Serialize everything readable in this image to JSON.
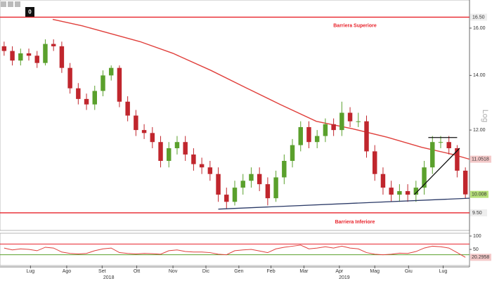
{
  "toolbar": {
    "badge": "0"
  },
  "chart_data": [
    {
      "type": "candlestick",
      "log": true,
      "log_label": "Log",
      "up_color": "#5aa02c",
      "down_color": "#c0262d",
      "x": [
        0.5,
        1.5,
        2.5,
        3.5,
        4.5,
        5.5,
        6.5,
        7.5,
        8.5,
        9.5,
        10.5,
        11.5,
        12.5,
        13.5,
        14.5,
        15.5,
        16.5,
        17.5,
        18.5,
        19.5,
        20.5,
        21.5,
        22.5,
        23.5,
        24.5,
        25.5,
        26.5,
        27.5,
        28.5,
        29.5,
        30.5,
        31.5,
        32.5,
        33.5,
        34.5,
        35.5,
        36.5,
        37.5,
        38.5,
        39.5,
        40.5,
        41.5,
        42.5,
        43.5,
        44.5,
        45.5,
        46.5,
        47.5,
        48.5,
        49.5,
        50.5,
        51.5,
        52.5,
        53.5,
        54.5,
        55.5,
        56.5
      ],
      "open": [
        15.2,
        15.0,
        14.6,
        14.9,
        14.8,
        14.5,
        15.3,
        15.2,
        14.3,
        13.5,
        13.1,
        12.9,
        13.4,
        14.0,
        14.3,
        13.0,
        12.5,
        12.0,
        11.9,
        11.6,
        11.0,
        11.4,
        11.6,
        11.2,
        10.9,
        10.8,
        10.6,
        10.0,
        9.8,
        10.2,
        10.4,
        10.6,
        10.3,
        9.9,
        10.5,
        11.0,
        11.5,
        12.1,
        11.6,
        11.8,
        12.2,
        12.0,
        12.6,
        12.3,
        12.3,
        11.3,
        10.6,
        10.2,
        10.0,
        10.1,
        10.0,
        10.2,
        10.8,
        11.6,
        11.6,
        11.4,
        10.7
      ],
      "high": [
        15.4,
        15.2,
        15.1,
        15.1,
        15.0,
        15.5,
        15.5,
        15.4,
        14.5,
        13.7,
        13.3,
        13.6,
        14.2,
        14.4,
        14.4,
        13.2,
        12.7,
        12.2,
        12.1,
        11.8,
        11.6,
        11.8,
        11.8,
        11.4,
        11.1,
        11.0,
        10.8,
        10.2,
        10.4,
        10.6,
        10.8,
        10.8,
        10.5,
        10.7,
        11.2,
        11.7,
        12.3,
        12.3,
        12.0,
        12.4,
        12.4,
        13.0,
        12.8,
        12.6,
        12.5,
        11.5,
        10.8,
        10.4,
        10.3,
        10.3,
        10.4,
        11.0,
        11.8,
        11.8,
        11.8,
        11.5,
        10.8
      ],
      "low": [
        14.8,
        14.4,
        14.4,
        14.6,
        14.3,
        14.4,
        15.0,
        14.1,
        13.3,
        12.9,
        12.7,
        12.7,
        13.2,
        13.8,
        12.8,
        12.3,
        11.8,
        11.7,
        11.4,
        10.8,
        10.8,
        11.2,
        11.0,
        10.7,
        10.6,
        10.4,
        9.8,
        9.6,
        9.7,
        10.0,
        10.2,
        10.1,
        9.7,
        9.8,
        10.3,
        10.8,
        11.3,
        11.4,
        11.4,
        11.6,
        11.8,
        11.8,
        12.1,
        12.1,
        11.1,
        10.4,
        10.0,
        9.8,
        9.8,
        9.8,
        9.8,
        10.0,
        10.6,
        11.4,
        11.2,
        10.5,
        9.9
      ],
      "close": [
        15.0,
        14.6,
        14.9,
        14.8,
        14.5,
        15.3,
        15.2,
        14.3,
        13.5,
        13.1,
        12.9,
        13.4,
        14.0,
        14.3,
        13.0,
        12.5,
        12.0,
        11.9,
        11.6,
        11.0,
        11.4,
        11.6,
        11.2,
        10.9,
        10.8,
        10.6,
        10.0,
        9.8,
        10.2,
        10.4,
        10.6,
        10.3,
        9.9,
        10.5,
        11.0,
        11.5,
        12.1,
        11.6,
        11.8,
        12.2,
        12.0,
        12.6,
        12.3,
        12.3,
        11.3,
        10.6,
        10.2,
        10.0,
        10.1,
        10.0,
        10.2,
        10.8,
        11.6,
        11.6,
        11.4,
        10.7,
        10.008
      ],
      "last_close_label": "10.008",
      "moving_average": {
        "color": "#e0403c",
        "x": [
          6.4,
          10,
          17,
          21,
          25.6,
          30,
          34,
          38.4,
          42.7,
          47,
          51.2,
          55,
          57
        ],
        "values": [
          16.4,
          16.1,
          15.4,
          14.9,
          14.2,
          13.5,
          12.9,
          12.3,
          12.05,
          11.76,
          11.43,
          11.2,
          11.0518
        ],
        "last_label": "11.0518"
      },
      "barriers": [
        {
          "value": 16.5,
          "label": "16.50",
          "text": "Barriera Superiore",
          "color": "#e8232b"
        },
        {
          "value": 9.5,
          "label": "9.50",
          "text": "Barriera Inferiore",
          "color": "#e8232b"
        }
      ],
      "trendlines": [
        {
          "color": "#2b3a67",
          "x": [
            26.5,
            57
          ],
          "values": [
            9.6,
            9.9
          ]
        },
        {
          "color": "#111111",
          "x": [
            52,
            55.5
          ],
          "values": [
            11.75,
            11.75
          ]
        },
        {
          "color": "#111111",
          "x": [
            50.3,
            55.8
          ],
          "values": [
            10.0,
            11.4
          ]
        }
      ],
      "xlim": [
        0,
        57
      ],
      "ylim": [
        9.04,
        17.32
      ],
      "yticks": [
        {
          "value": 16,
          "label": "16.00"
        },
        {
          "value": 14,
          "label": "14.00"
        },
        {
          "value": 12,
          "label": "12.00"
        }
      ],
      "xticks": [
        {
          "value": 3.7,
          "label": "Lug"
        },
        {
          "value": 8.1,
          "label": "Ago"
        },
        {
          "value": 12.4,
          "label": "Set"
        },
        {
          "value": 16.6,
          "label": "Ott"
        },
        {
          "value": 21,
          "label": "Nov"
        },
        {
          "value": 25,
          "label": "Dic"
        },
        {
          "value": 29,
          "label": "Gen"
        },
        {
          "value": 32.9,
          "label": "Feb"
        },
        {
          "value": 36.9,
          "label": "Mar"
        },
        {
          "value": 41.2,
          "label": "Apr"
        },
        {
          "value": 45.5,
          "label": "Mag"
        },
        {
          "value": 49.6,
          "label": "Giu"
        },
        {
          "value": 53.8,
          "label": "Lug"
        }
      ],
      "year_ticks": [
        {
          "value": 13.2,
          "label": "2018"
        },
        {
          "value": 41.8,
          "label": "2019"
        }
      ]
    },
    {
      "type": "line",
      "color": "#e0403c",
      "x": [
        0.5,
        1.5,
        2.5,
        3.5,
        4.5,
        5.5,
        6.5,
        7.5,
        8.5,
        9.5,
        10.5,
        11.5,
        12.5,
        13.5,
        14.5,
        15.5,
        16.5,
        17.5,
        18.5,
        19.5,
        20.5,
        21.5,
        22.5,
        23.5,
        24.5,
        25.5,
        26.5,
        27.5,
        28.5,
        29.5,
        30.5,
        31.5,
        32.5,
        33.5,
        34.5,
        35.5,
        36.5,
        37.5,
        38.5,
        39.5,
        40.5,
        41.5,
        42.5,
        43.5,
        44.5,
        45.5,
        46.5,
        47.5,
        48.5,
        49.5,
        50.5,
        51.5,
        52.5,
        53.5,
        54.5,
        55.5,
        56.5
      ],
      "values": [
        55,
        48,
        52,
        50,
        45,
        58,
        55,
        40,
        35,
        33,
        35,
        45,
        52,
        55,
        38,
        35,
        33,
        35,
        34,
        32,
        45,
        48,
        42,
        40,
        40,
        38,
        32,
        30,
        45,
        48,
        50,
        44,
        38,
        52,
        58,
        62,
        66,
        52,
        55,
        60,
        55,
        62,
        55,
        52,
        38,
        32,
        30,
        32,
        36,
        35,
        42,
        55,
        62,
        60,
        55,
        38,
        20.2958
      ],
      "levels": [
        {
          "value": 70,
          "color": "#e8232b"
        },
        {
          "value": 30,
          "color": "#5aa02c"
        }
      ],
      "xlim": [
        0,
        57
      ],
      "ylim": [
        0,
        100
      ],
      "yticks": [
        100,
        50
      ]
    }
  ]
}
